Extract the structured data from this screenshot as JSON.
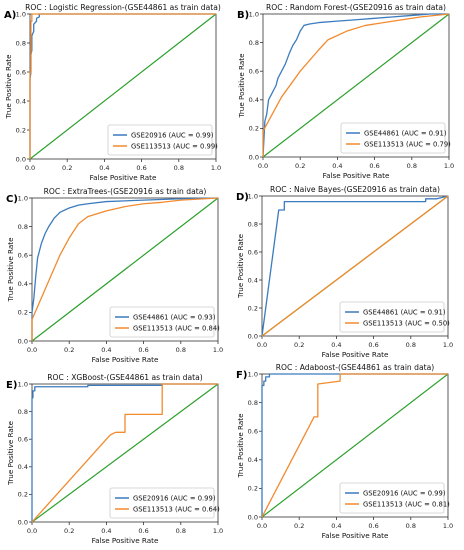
{
  "colors": {
    "blue": "#3b7bbf",
    "orange": "#f28a2e",
    "green": "#2ca02c",
    "axis": "#333333"
  },
  "chart_data": [
    {
      "type": "line",
      "panel_letter": "A)",
      "title": "ROC : Logistic Regression-(GSE44861 as train data)",
      "xlabel": "False Positive Rate",
      "ylabel": "True Positive Rate",
      "xlim": [
        0,
        1
      ],
      "ylim": [
        0,
        1
      ],
      "xticks": [
        "0.0",
        "0.2",
        "0.4",
        "0.6",
        "0.8",
        "1.0"
      ],
      "yticks": [
        "0.0",
        "0.2",
        "0.4",
        "0.6",
        "0.8",
        "1.0"
      ],
      "legend_position": "lower-right",
      "diagonal": true,
      "series": [
        {
          "name": "GSE20916 (AUC = 0.99)",
          "color": "blue",
          "x": [
            0,
            0,
            0.005,
            0.005,
            0.01,
            0.01,
            0.02,
            0.02,
            0.035,
            0.035,
            0.05,
            0.05,
            1
          ],
          "y": [
            0,
            0.55,
            0.6,
            0.72,
            0.75,
            0.85,
            0.88,
            0.93,
            0.95,
            0.97,
            0.98,
            1,
            1
          ]
        },
        {
          "name": "GSE113513 (AUC = 0.99)",
          "color": "orange",
          "x": [
            0,
            0,
            0.005,
            0.005,
            0.01,
            0.01,
            1
          ],
          "y": [
            0,
            0.6,
            0.6,
            0.95,
            0.95,
            1,
            1
          ]
        }
      ]
    },
    {
      "type": "line",
      "panel_letter": "B)",
      "title": "ROC : Random Forest-(GSE20916 as train data)",
      "xlabel": "False Positive Rate",
      "ylabel": "True Positive Rate",
      "xlim": [
        0,
        1
      ],
      "ylim": [
        0,
        1
      ],
      "xticks": [
        "0.0",
        "0.2",
        "0.4",
        "0.6",
        "0.8",
        "1.0"
      ],
      "yticks": [
        "0.0",
        "0.2",
        "0.4",
        "0.6",
        "0.8",
        "1.0"
      ],
      "legend_position": "lower-right",
      "diagonal": true,
      "series": [
        {
          "name": "GSE44861 (AUC = 0.91)",
          "color": "blue",
          "x": [
            0,
            0.01,
            0.02,
            0.03,
            0.05,
            0.07,
            0.08,
            0.1,
            0.12,
            0.14,
            0.16,
            0.18,
            0.2,
            0.22,
            0.25,
            0.3,
            0.4,
            0.5,
            0.6,
            0.7,
            0.8,
            0.9,
            1
          ],
          "y": [
            0,
            0.25,
            0.3,
            0.4,
            0.45,
            0.5,
            0.55,
            0.6,
            0.65,
            0.72,
            0.78,
            0.82,
            0.88,
            0.92,
            0.93,
            0.94,
            0.95,
            0.96,
            0.97,
            0.98,
            0.99,
            1,
            1
          ]
        },
        {
          "name": "GSE113513 (AUC = 0.79)",
          "color": "orange",
          "x": [
            0,
            0,
            0.05,
            0.1,
            0.2,
            0.3,
            0.35,
            0.45,
            0.55,
            0.7,
            0.85,
            1
          ],
          "y": [
            0,
            0.18,
            0.3,
            0.42,
            0.6,
            0.75,
            0.82,
            0.88,
            0.92,
            0.95,
            0.98,
            1
          ]
        }
      ]
    },
    {
      "type": "line",
      "panel_letter": "C)",
      "title": "ROC : ExtraTrees-(GSE20916 as train data)",
      "xlabel": "False Positive Rate",
      "ylabel": "True Positive Rate",
      "xlim": [
        0,
        1
      ],
      "ylim": [
        0,
        1
      ],
      "xticks": [
        "0.0",
        "0.2",
        "0.4",
        "0.6",
        "0.8",
        "1.0"
      ],
      "yticks": [
        "0.0",
        "0.2",
        "0.4",
        "0.6",
        "0.8",
        "1.0"
      ],
      "legend_position": "lower-right",
      "diagonal": true,
      "series": [
        {
          "name": "GSE44861 (AUC = 0.93)",
          "color": "blue",
          "x": [
            0,
            0,
            0.01,
            0.02,
            0.03,
            0.05,
            0.07,
            0.09,
            0.12,
            0.15,
            0.2,
            0.25,
            0.3,
            0.4,
            0.5,
            0.6,
            0.8,
            1
          ],
          "y": [
            0,
            0.2,
            0.3,
            0.45,
            0.58,
            0.68,
            0.75,
            0.8,
            0.86,
            0.9,
            0.93,
            0.95,
            0.96,
            0.975,
            0.98,
            0.985,
            0.995,
            1
          ]
        },
        {
          "name": "GSE113513 (AUC = 0.84)",
          "color": "orange",
          "x": [
            0,
            0,
            0.05,
            0.1,
            0.15,
            0.2,
            0.25,
            0.3,
            0.4,
            0.5,
            0.6,
            0.7,
            0.8,
            1
          ],
          "y": [
            0,
            0.15,
            0.3,
            0.45,
            0.6,
            0.72,
            0.82,
            0.87,
            0.91,
            0.94,
            0.96,
            0.97,
            0.985,
            1
          ]
        }
      ]
    },
    {
      "type": "line",
      "panel_letter": "D)",
      "title": "ROC : Naive Bayes-(GSE20916 as train data)",
      "xlabel": "False Positive Rate",
      "ylabel": "True Positive Rate",
      "xlim": [
        0,
        1
      ],
      "ylim": [
        0,
        1
      ],
      "xticks": [
        "0.0",
        "0.2",
        "0.4",
        "0.6",
        "0.8",
        "1.0"
      ],
      "yticks": [
        "0.0",
        "0.2",
        "0.4",
        "0.6",
        "0.8",
        "1.0"
      ],
      "legend_position": "lower-right",
      "diagonal": true,
      "series": [
        {
          "name": "GSE44861 (AUC = 0.91)",
          "color": "blue",
          "x": [
            0,
            0.09,
            0.12,
            0.12,
            0.88,
            0.88,
            0.94,
            1
          ],
          "y": [
            0,
            0.9,
            0.9,
            0.96,
            0.96,
            0.98,
            0.98,
            1
          ]
        },
        {
          "name": "GSE113513 (AUC = 0.50)",
          "color": "orange",
          "x": [
            0,
            1
          ],
          "y": [
            0,
            1
          ]
        }
      ]
    },
    {
      "type": "line",
      "panel_letter": "E)",
      "title": "ROC : XGBoost-(GSE44861 as train data)",
      "xlabel": "False Positive Rate",
      "ylabel": "True Positive Rate",
      "xlim": [
        0,
        1
      ],
      "ylim": [
        0,
        1
      ],
      "xticks": [
        "0.0",
        "0.2",
        "0.4",
        "0.6",
        "0.8",
        "1.0"
      ],
      "yticks": [
        "0.0",
        "0.2",
        "0.4",
        "0.6",
        "0.8",
        "1.0"
      ],
      "legend_position": "lower-right",
      "diagonal": true,
      "series": [
        {
          "name": "GSE20916 (AUC = 0.99)",
          "color": "blue",
          "x": [
            0,
            0,
            0.005,
            0.005,
            0.015,
            0.015,
            0.3,
            0.3,
            0.7,
            0.7,
            1
          ],
          "y": [
            0,
            0.9,
            0.9,
            0.95,
            0.95,
            0.98,
            0.98,
            0.99,
            0.99,
            1,
            1
          ]
        },
        {
          "name": "GSE113513 (AUC = 0.64)",
          "color": "orange",
          "x": [
            0,
            0.42,
            0.45,
            0.5,
            0.5,
            0.7,
            0.7,
            1
          ],
          "y": [
            0,
            0.63,
            0.65,
            0.65,
            0.78,
            0.78,
            1,
            1
          ]
        }
      ]
    },
    {
      "type": "line",
      "panel_letter": "F)",
      "title": "ROC : Adaboost-(GSE44861 as train data)",
      "xlabel": "False Positive Rate",
      "ylabel": "True Positive Rate",
      "xlim": [
        0,
        1
      ],
      "ylim": [
        0,
        1
      ],
      "xticks": [
        "0.0",
        "0.2",
        "0.4",
        "0.6",
        "0.8",
        "1.0"
      ],
      "yticks": [
        "0.0",
        "0.2",
        "0.4",
        "0.6",
        "0.8",
        "1.0"
      ],
      "legend_position": "lower-right",
      "diagonal": true,
      "series": [
        {
          "name": "GSE20916 (AUC = 0.99)",
          "color": "blue",
          "x": [
            0,
            0,
            0.01,
            0.01,
            0.02,
            0.02,
            0.04,
            0.04,
            1
          ],
          "y": [
            0,
            0.92,
            0.92,
            0.95,
            0.95,
            0.98,
            0.98,
            1,
            1
          ]
        },
        {
          "name": "GSE113513 (AUC = 0.81)",
          "color": "orange",
          "x": [
            0,
            0.28,
            0.3,
            0.3,
            0.42,
            0.42,
            1
          ],
          "y": [
            0,
            0.7,
            0.7,
            0.93,
            0.95,
            1,
            1
          ]
        }
      ]
    }
  ]
}
